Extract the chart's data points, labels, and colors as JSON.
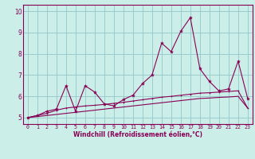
{
  "xlabel": "Windchill (Refroidissement éolien,°C)",
  "ylabel": "",
  "bg_color": "#cceee8",
  "line_color": "#880055",
  "grid_color": "#99cccc",
  "xlim": [
    -0.5,
    23.5
  ],
  "ylim": [
    4.7,
    10.3
  ],
  "xtick_vals": [
    0,
    1,
    2,
    3,
    4,
    5,
    6,
    7,
    8,
    9,
    10,
    11,
    12,
    13,
    14,
    15,
    16,
    17,
    18,
    19,
    20,
    21,
    22,
    23
  ],
  "xtick_labels": [
    "0",
    "1",
    "2",
    "3",
    "4",
    "5",
    "6",
    "7",
    "8",
    "9",
    "10",
    "11",
    "12",
    "13",
    "14",
    "15",
    "16",
    "17",
    "18",
    "19",
    "20",
    "21",
    "22",
    "23"
  ],
  "ytick_vals": [
    5,
    6,
    7,
    8,
    9,
    10
  ],
  "ytick_labels": [
    "5",
    "6",
    "7",
    "8",
    "9",
    "10"
  ],
  "line1_x": [
    0,
    1,
    2,
    3,
    4,
    5,
    6,
    7,
    8,
    9,
    10,
    11,
    12,
    13,
    14,
    15,
    16,
    17,
    18,
    19,
    20,
    21,
    22,
    23
  ],
  "line1_y": [
    5.0,
    5.1,
    5.3,
    5.4,
    6.5,
    5.3,
    6.5,
    6.2,
    5.65,
    5.55,
    5.85,
    6.05,
    6.6,
    7.0,
    8.5,
    8.1,
    9.05,
    9.7,
    7.3,
    6.7,
    6.25,
    6.35,
    7.65,
    5.9
  ],
  "line2_x": [
    0,
    1,
    2,
    3,
    4,
    5,
    6,
    7,
    8,
    9,
    10,
    11,
    12,
    13,
    14,
    15,
    16,
    17,
    18,
    19,
    20,
    21,
    22,
    23
  ],
  "line2_y": [
    5.0,
    5.1,
    5.2,
    5.35,
    5.45,
    5.5,
    5.55,
    5.58,
    5.62,
    5.67,
    5.72,
    5.78,
    5.84,
    5.9,
    5.96,
    6.0,
    6.05,
    6.1,
    6.15,
    6.17,
    6.2,
    6.23,
    6.26,
    5.45
  ],
  "line3_x": [
    0,
    1,
    2,
    3,
    4,
    5,
    6,
    7,
    8,
    9,
    10,
    11,
    12,
    13,
    14,
    15,
    16,
    17,
    18,
    19,
    20,
    21,
    22,
    23
  ],
  "line3_y": [
    5.0,
    5.05,
    5.1,
    5.15,
    5.2,
    5.25,
    5.3,
    5.35,
    5.4,
    5.45,
    5.5,
    5.55,
    5.6,
    5.65,
    5.7,
    5.75,
    5.8,
    5.85,
    5.9,
    5.92,
    5.95,
    5.97,
    6.0,
    5.45
  ]
}
